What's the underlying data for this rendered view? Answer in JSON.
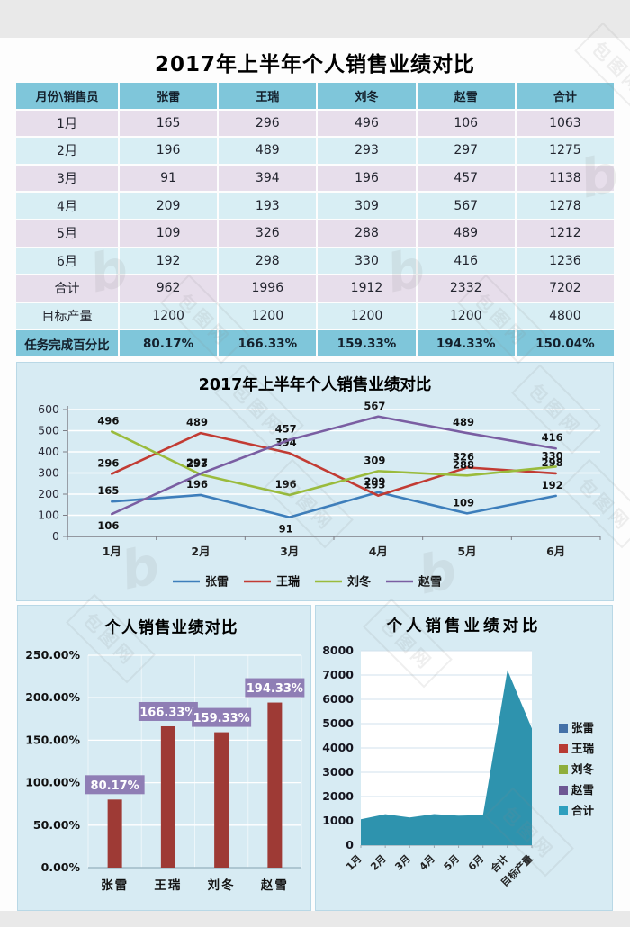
{
  "page": {
    "title": "2017年上半年个人销售业绩对比",
    "watermark_text": "包图网",
    "watermark_logo": "b",
    "background_color": "#e9e9e9",
    "content_background": "#fdfdfd"
  },
  "table": {
    "header": [
      "月份\\销售员",
      "张雷",
      "王瑞",
      "刘冬",
      "赵雪",
      "合计"
    ],
    "rows": [
      {
        "label": "1月",
        "values": [
          "165",
          "296",
          "496",
          "106",
          "1063"
        ]
      },
      {
        "label": "2月",
        "values": [
          "196",
          "489",
          "293",
          "297",
          "1275"
        ]
      },
      {
        "label": "3月",
        "values": [
          "91",
          "394",
          "196",
          "457",
          "1138"
        ]
      },
      {
        "label": "4月",
        "values": [
          "209",
          "193",
          "309",
          "567",
          "1278"
        ]
      },
      {
        "label": "5月",
        "values": [
          "109",
          "326",
          "288",
          "489",
          "1212"
        ]
      },
      {
        "label": "6月",
        "values": [
          "192",
          "298",
          "330",
          "416",
          "1236"
        ]
      },
      {
        "label": "合计",
        "values": [
          "962",
          "1996",
          "1912",
          "2332",
          "7202"
        ]
      },
      {
        "label": "目标产量",
        "values": [
          "1200",
          "1200",
          "1200",
          "1200",
          "4800"
        ]
      }
    ],
    "footer": {
      "label": "任务完成百分比",
      "values": [
        "80.17%",
        "166.33%",
        "159.33%",
        "194.33%",
        "150.04%"
      ]
    },
    "colors": {
      "header_bg": "#7fc6da",
      "row_odd_bg": "#e7deeb",
      "row_even_bg": "#d8eef4",
      "footer_bg": "#7fc6da"
    }
  },
  "chart_data": [
    {
      "id": "line",
      "type": "line",
      "title": "2017年上半年个人销售业绩对比",
      "categories": [
        "1月",
        "2月",
        "3月",
        "4月",
        "5月",
        "6月"
      ],
      "series": [
        {
          "name": "张雷",
          "color": "#3d7ebb",
          "values": [
            165,
            196,
            91,
            209,
            109,
            192
          ]
        },
        {
          "name": "王瑞",
          "color": "#c23b33",
          "values": [
            296,
            489,
            394,
            193,
            326,
            298
          ]
        },
        {
          "name": "刘冬",
          "color": "#9abb3c",
          "values": [
            496,
            293,
            196,
            309,
            288,
            330
          ]
        },
        {
          "name": "赵雪",
          "color": "#7a5ea2",
          "values": [
            106,
            297,
            457,
            567,
            489,
            416
          ]
        }
      ],
      "ylim": [
        0,
        600
      ],
      "ytick": 100,
      "grid": true,
      "data_labels": true,
      "legend_position": "bottom"
    },
    {
      "id": "bar",
      "type": "bar",
      "title": "个人销售业绩对比",
      "categories": [
        "张雷",
        "王瑞",
        "刘冬",
        "赵雪"
      ],
      "values": [
        80.17,
        166.33,
        159.33,
        194.33
      ],
      "labels": [
        "80.17%",
        "166.33%",
        "159.33%",
        "194.33%"
      ],
      "ylim": [
        0,
        250
      ],
      "ytick": 50,
      "ytick_format": "percent",
      "grid": true,
      "legend_position": "none",
      "bar_color": "#9e3a35",
      "label_box_color": "#8f7eb5",
      "label_text_color": "#ffffff"
    },
    {
      "id": "area",
      "type": "area",
      "title": "个人销售业绩对比",
      "categories": [
        "1月",
        "2月",
        "3月",
        "4月",
        "5月",
        "6月",
        "合计",
        "目标产量"
      ],
      "series": [
        {
          "name": "合计",
          "color": "#2e93ae",
          "values": [
            1063,
            1275,
            1138,
            1278,
            1212,
            1236,
            7202,
            4800
          ]
        }
      ],
      "legend_entries": [
        {
          "name": "张雷",
          "color": "#4471a8"
        },
        {
          "name": "王瑞",
          "color": "#b83b34"
        },
        {
          "name": "刘冬",
          "color": "#8fae3c"
        },
        {
          "name": "赵雪",
          "color": "#6e5794"
        },
        {
          "name": "合计",
          "color": "#2e9fbe"
        }
      ],
      "ylim": [
        0,
        8000
      ],
      "ytick": 1000,
      "grid": true,
      "legend_position": "right",
      "plot_background": "#ffffff"
    }
  ]
}
